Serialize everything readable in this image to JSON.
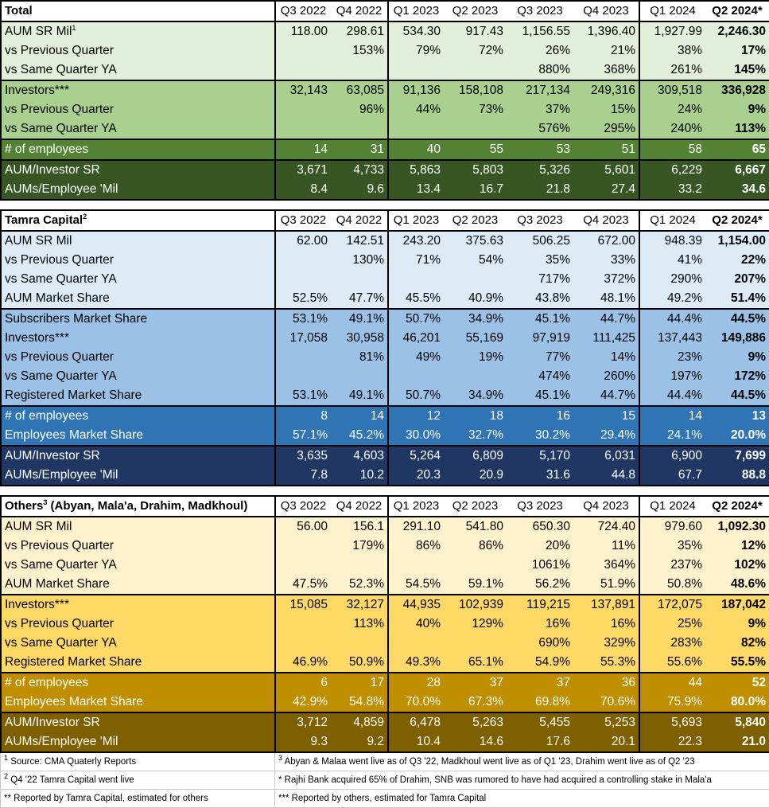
{
  "quarters": [
    "Q3 2022",
    "Q4 2022",
    "Q1 2023",
    "Q2 2023",
    "Q3 2023",
    "Q4 2023",
    "Q1 2024",
    "Q2 2024*"
  ],
  "sections": [
    {
      "id": "total",
      "title": "Total",
      "title_sup": "",
      "rows": [
        {
          "label": "AUM SR Mil",
          "sup": "1",
          "band": 0,
          "values": [
            "118.00",
            "298.61",
            "534.30",
            "917.43",
            "1,156.55",
            "1,396.40",
            "1,927.99",
            "2,246.30"
          ]
        },
        {
          "label": "vs Previous Quarter",
          "sup": "",
          "band": 0,
          "values": [
            "",
            "153%",
            "79%",
            "72%",
            "26%",
            "21%",
            "38%",
            "17%"
          ]
        },
        {
          "label": "vs Same Quarter YA",
          "sup": "",
          "band": 0,
          "values": [
            "",
            "",
            "",
            "",
            "880%",
            "368%",
            "261%",
            "145%"
          ]
        },
        {
          "label": "Investors***",
          "sup": "",
          "band": 1,
          "values": [
            "32,143",
            "63,085",
            "91,136",
            "158,108",
            "217,134",
            "249,316",
            "309,518",
            "336,928"
          ]
        },
        {
          "label": "vs Previous Quarter",
          "sup": "",
          "band": 1,
          "values": [
            "",
            "96%",
            "44%",
            "73%",
            "37%",
            "15%",
            "24%",
            "9%"
          ]
        },
        {
          "label": "vs Same Quarter YA",
          "sup": "",
          "band": 1,
          "values": [
            "",
            "",
            "",
            "",
            "576%",
            "295%",
            "240%",
            "113%"
          ]
        },
        {
          "label": "# of employees",
          "sup": "",
          "band": 2,
          "values": [
            "14",
            "31",
            "40",
            "55",
            "53",
            "51",
            "58",
            "65"
          ]
        },
        {
          "label": "AUM/Investor SR",
          "sup": "",
          "band": 3,
          "values": [
            "3,671",
            "4,733",
            "5,863",
            "5,803",
            "5,326",
            "5,601",
            "6,229",
            "6,667"
          ]
        },
        {
          "label": "AUMs/Employee 'Mil",
          "sup": "",
          "band": 3,
          "values": [
            "8.4",
            "9.6",
            "13.4",
            "16.7",
            "21.8",
            "27.4",
            "33.2",
            "34.6"
          ]
        }
      ]
    },
    {
      "id": "tamra",
      "title": "Tamra Capital",
      "title_sup": "2",
      "rows": [
        {
          "label": "AUM SR Mil",
          "sup": "",
          "band": 0,
          "values": [
            "62.00",
            "142.51",
            "243.20",
            "375.63",
            "506.25",
            "672.00",
            "948.39",
            "1,154.00"
          ]
        },
        {
          "label": "vs Previous Quarter",
          "sup": "",
          "band": 0,
          "values": [
            "",
            "130%",
            "71%",
            "54%",
            "35%",
            "33%",
            "41%",
            "22%"
          ]
        },
        {
          "label": "vs Same Quarter YA",
          "sup": "",
          "band": 0,
          "values": [
            "",
            "",
            "",
            "",
            "717%",
            "372%",
            "290%",
            "207%"
          ]
        },
        {
          "label": "AUM Market Share",
          "sup": "",
          "band": 0,
          "values": [
            "52.5%",
            "47.7%",
            "45.5%",
            "40.9%",
            "43.8%",
            "48.1%",
            "49.2%",
            "51.4%"
          ]
        },
        {
          "label": "Subscribers Market Share",
          "sup": "",
          "band": 1,
          "values": [
            "53.1%",
            "49.1%",
            "50.7%",
            "34.9%",
            "45.1%",
            "44.7%",
            "44.4%",
            "44.5%"
          ]
        },
        {
          "label": "Investors***",
          "sup": "",
          "band": 1,
          "values": [
            "17,058",
            "30,958",
            "46,201",
            "55,169",
            "97,919",
            "111,425",
            "137,443",
            "149,886"
          ]
        },
        {
          "label": "vs Previous Quarter",
          "sup": "",
          "band": 1,
          "values": [
            "",
            "81%",
            "49%",
            "19%",
            "77%",
            "14%",
            "23%",
            "9%"
          ]
        },
        {
          "label": "vs Same Quarter YA",
          "sup": "",
          "band": 1,
          "values": [
            "",
            "",
            "",
            "",
            "474%",
            "260%",
            "197%",
            "172%"
          ]
        },
        {
          "label": "Registered Market Share",
          "sup": "",
          "band": 1,
          "values": [
            "53.1%",
            "49.1%",
            "50.7%",
            "34.9%",
            "45.1%",
            "44.7%",
            "44.4%",
            "44.5%"
          ]
        },
        {
          "label": "# of employees",
          "sup": "",
          "band": 2,
          "values": [
            "8",
            "14",
            "12",
            "18",
            "16",
            "15",
            "14",
            "13"
          ]
        },
        {
          "label": "Employees Market Share",
          "sup": "",
          "band": 2,
          "values": [
            "57.1%",
            "45.2%",
            "30.0%",
            "32.7%",
            "30.2%",
            "29.4%",
            "24.1%",
            "20.0%"
          ]
        },
        {
          "label": "AUM/Investor SR",
          "sup": "",
          "band": 3,
          "values": [
            "3,635",
            "4,603",
            "5,264",
            "6,809",
            "5,170",
            "6,031",
            "6,900",
            "7,699"
          ]
        },
        {
          "label": "AUMs/Employee 'Mil",
          "sup": "",
          "band": 3,
          "values": [
            "7.8",
            "10.2",
            "20.3",
            "20.9",
            "31.6",
            "44.8",
            "67.7",
            "88.8"
          ]
        }
      ]
    },
    {
      "id": "others",
      "title": "Others",
      "title_sup": "3",
      "title_suffix": " (Abyan, Mala'a, Drahim, Madkhoul)",
      "rows": [
        {
          "label": "AUM SR Mil",
          "sup": "",
          "band": 0,
          "values": [
            "56.00",
            "156.1",
            "291.10",
            "541.80",
            "650.30",
            "724.40",
            "979.60",
            "1,092.30"
          ]
        },
        {
          "label": "vs Previous Quarter",
          "sup": "",
          "band": 0,
          "values": [
            "",
            "179%",
            "86%",
            "86%",
            "20%",
            "11%",
            "35%",
            "12%"
          ]
        },
        {
          "label": "vs Same Quarter YA",
          "sup": "",
          "band": 0,
          "values": [
            "",
            "",
            "",
            "",
            "1061%",
            "364%",
            "237%",
            "102%"
          ]
        },
        {
          "label": "AUM Market Share",
          "sup": "",
          "band": 0,
          "values": [
            "47.5%",
            "52.3%",
            "54.5%",
            "59.1%",
            "56.2%",
            "51.9%",
            "50.8%",
            "48.6%"
          ]
        },
        {
          "label": "Investors***",
          "sup": "",
          "band": 1,
          "values": [
            "15,085",
            "32,127",
            "44,935",
            "102,939",
            "119,215",
            "137,891",
            "172,075",
            "187,042"
          ]
        },
        {
          "label": "vs Previous Quarter",
          "sup": "",
          "band": 1,
          "values": [
            "",
            "113%",
            "40%",
            "129%",
            "16%",
            "16%",
            "25%",
            "9%"
          ]
        },
        {
          "label": "vs Same Quarter YA",
          "sup": "",
          "band": 1,
          "values": [
            "",
            "",
            "",
            "",
            "690%",
            "329%",
            "283%",
            "82%"
          ]
        },
        {
          "label": "Registered Market Share",
          "sup": "",
          "band": 1,
          "values": [
            "46.9%",
            "50.9%",
            "49.3%",
            "65.1%",
            "54.9%",
            "55.3%",
            "55.6%",
            "55.5%"
          ]
        },
        {
          "label": "# of employees",
          "sup": "",
          "band": 2,
          "values": [
            "6",
            "17",
            "28",
            "37",
            "37",
            "36",
            "44",
            "52"
          ]
        },
        {
          "label": "Employees Market Share",
          "sup": "",
          "band": 2,
          "values": [
            "42.9%",
            "54.8%",
            "70.0%",
            "67.3%",
            "69.8%",
            "70.6%",
            "75.9%",
            "80.0%"
          ]
        },
        {
          "label": "AUM/Investor SR",
          "sup": "",
          "band": 3,
          "values": [
            "3,712",
            "4,859",
            "6,478",
            "5,263",
            "5,455",
            "5,253",
            "5,693",
            "5,840"
          ]
        },
        {
          "label": "AUMs/Employee 'Mil",
          "sup": "",
          "band": 3,
          "values": [
            "9.3",
            "9.2",
            "10.4",
            "14.6",
            "17.6",
            "20.1",
            "22.3",
            "21.0"
          ]
        }
      ]
    }
  ],
  "palettes": {
    "total": [
      "#e2efda",
      "#a9d08e",
      "#548235",
      "#375623"
    ],
    "tamra": [
      "#ddebf7",
      "#9bc2e6",
      "#2f75b5",
      "#203764"
    ],
    "others": [
      "#fff2cc",
      "#ffd966",
      "#bf8f00",
      "#7f6000"
    ]
  },
  "footnotes": [
    {
      "left_sup": "1",
      "left": " Source: CMA Quaterly Reports",
      "right_sup": "3",
      "right": " Abyan & Malaa went live as of Q3 '22, Madkhoul went live as of Q1 '23, Drahim went live as of Q2 '23"
    },
    {
      "left_sup": "2",
      "left": " Q4 '22 Tamra Capital went live",
      "right_sup": "",
      "right": "* Rajhi Bank acquired 65% of Drahim, SNB was rumored to have had acquired a controlling stake in Mala'a"
    },
    {
      "left_sup": "",
      "left": "** Reported by Tamra Capital, estimated for others",
      "right_sup": "",
      "right": "*** Reported by others, estimated for Tamra Capital"
    }
  ]
}
